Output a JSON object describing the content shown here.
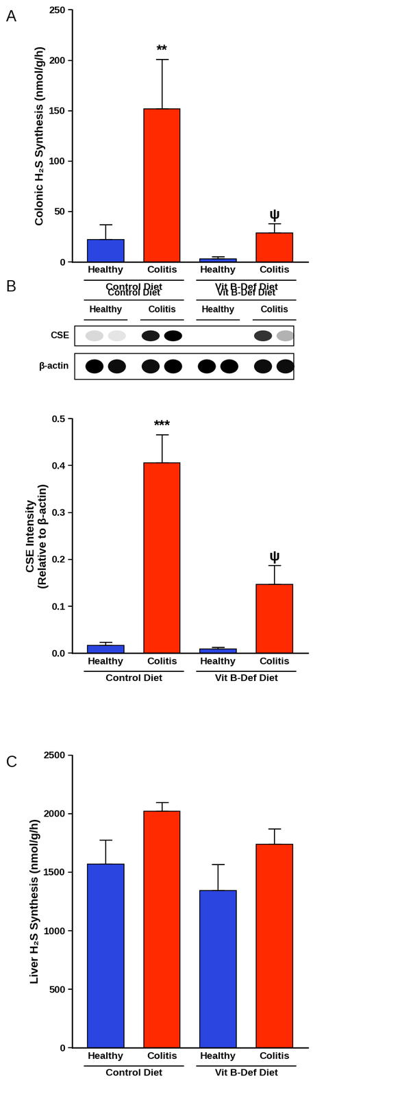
{
  "chart_data": [
    {
      "type": "bar",
      "panel": "A",
      "y_label": "Colonic H₂S Synthesis (nmol/g/h)",
      "categories": [
        "Healthy",
        "Colitis",
        "Healthy",
        "Colitis"
      ],
      "groups": [
        {
          "label": "Control Diet",
          "indices": [
            0,
            1
          ]
        },
        {
          "label": "Vit B-Def Diet",
          "indices": [
            2,
            3
          ]
        }
      ],
      "values": [
        22,
        152,
        3,
        29
      ],
      "errors": [
        15,
        49,
        2,
        9
      ],
      "colors": [
        "#2a45e0",
        "#ff2a00",
        "#2a45e0",
        "#ff2a00"
      ],
      "annotations": [
        {
          "text": "**",
          "index": 1
        },
        {
          "text": "ψ",
          "index": 3
        }
      ],
      "ylim": [
        0,
        250
      ],
      "yticks": [
        0,
        50,
        100,
        150,
        200,
        250
      ]
    },
    {
      "type": "bar",
      "panel": "B",
      "blot": {
        "group_labels": [
          "Control Diet",
          "Vit B-Def Diet"
        ],
        "lane_labels": [
          "Healthy",
          "Colitis",
          "Healthy",
          "Colitis"
        ],
        "rows": [
          "CSE",
          "β-actin"
        ]
      },
      "y_label": "CSE Intensity\n(Relative to β-actin)",
      "categories": [
        "Healthy",
        "Colitis",
        "Healthy",
        "Colitis"
      ],
      "groups": [
        {
          "label": "Control Diet",
          "indices": [
            0,
            1
          ]
        },
        {
          "label": "Vit B-Def Diet",
          "indices": [
            2,
            3
          ]
        }
      ],
      "values": [
        0.017,
        0.406,
        0.009,
        0.147
      ],
      "errors": [
        0.006,
        0.06,
        0.003,
        0.04
      ],
      "colors": [
        "#2a45e0",
        "#ff2a00",
        "#2a45e0",
        "#ff2a00"
      ],
      "annotations": [
        {
          "text": "***",
          "index": 1
        },
        {
          "text": "ψ",
          "index": 3
        }
      ],
      "ylim": [
        0,
        0.5
      ],
      "yticks": [
        {
          "value": 0,
          "label": "0.0"
        },
        0.1,
        0.2,
        0.3,
        0.4,
        0.5
      ]
    },
    {
      "type": "bar",
      "panel": "C",
      "y_label": "Liver H₂S Synthesis (nmol/g/h)",
      "categories": [
        "Healthy",
        "Colitis",
        "Healthy",
        "Colitis"
      ],
      "groups": [
        {
          "label": "Control Diet",
          "indices": [
            0,
            1
          ]
        },
        {
          "label": "Vit B-Def Diet",
          "indices": [
            2,
            3
          ]
        }
      ],
      "values": [
        1570,
        2020,
        1345,
        1740
      ],
      "errors": [
        205,
        75,
        220,
        130
      ],
      "colors": [
        "#2a45e0",
        "#ff2a00",
        "#2a45e0",
        "#ff2a00"
      ],
      "ylim": [
        0,
        2500
      ],
      "yticks": [
        0,
        500,
        1000,
        1500,
        2000,
        2500
      ]
    }
  ]
}
